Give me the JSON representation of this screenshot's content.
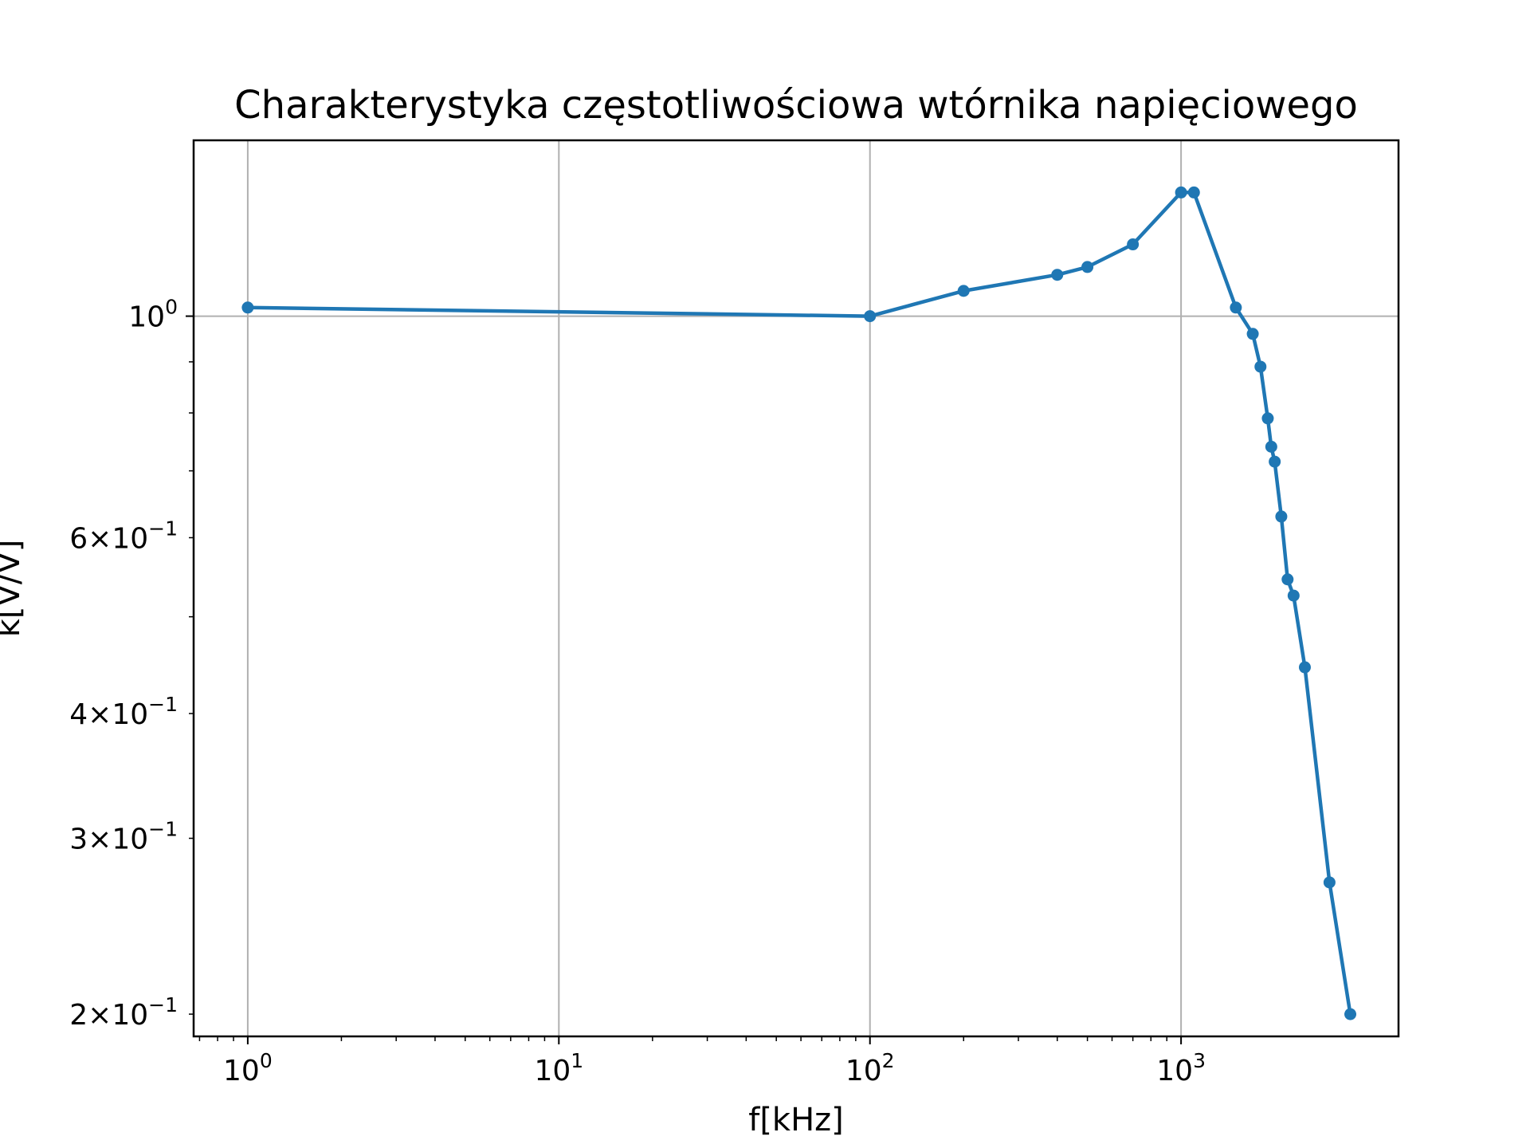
{
  "chart_data": {
    "type": "line",
    "title": "Charakterystyka częstotliwościowa wtórnika napięciowego",
    "xlabel": "f[kHz]",
    "ylabel": "k[V/V]",
    "xscale": "log",
    "yscale": "log",
    "xlim": [
      0.67,
      5000
    ],
    "ylim": [
      0.19,
      1.5
    ],
    "grid": true,
    "color": "#1f77b4",
    "x_major_ticks": [
      {
        "value": 1,
        "base": "10",
        "exp": "0"
      },
      {
        "value": 10,
        "base": "10",
        "exp": "1"
      },
      {
        "value": 100,
        "base": "10",
        "exp": "2"
      },
      {
        "value": 1000,
        "base": "10",
        "exp": "3"
      }
    ],
    "y_major_ticks": [
      {
        "value": 1,
        "base": "10",
        "exp": "0"
      }
    ],
    "y_minor_labels": [
      {
        "value": 0.6,
        "base": "6×10",
        "exp": "−1"
      },
      {
        "value": 0.4,
        "base": "4×10",
        "exp": "−1"
      },
      {
        "value": 0.3,
        "base": "3×10",
        "exp": "−1"
      },
      {
        "value": 0.2,
        "base": "2×10",
        "exp": "−1"
      }
    ],
    "series": [
      {
        "x": [
          1,
          100,
          200,
          400,
          500,
          700,
          1000,
          1100,
          1500,
          1700,
          1800,
          1900,
          1950,
          2000,
          2100,
          2200,
          2300,
          2500,
          3000,
          3500
        ],
        "y": [
          1.02,
          1.0,
          1.06,
          1.1,
          1.12,
          1.18,
          1.33,
          1.33,
          1.02,
          0.96,
          0.89,
          0.79,
          0.74,
          0.715,
          0.63,
          0.545,
          0.525,
          0.445,
          0.271,
          0.2
        ]
      }
    ]
  }
}
